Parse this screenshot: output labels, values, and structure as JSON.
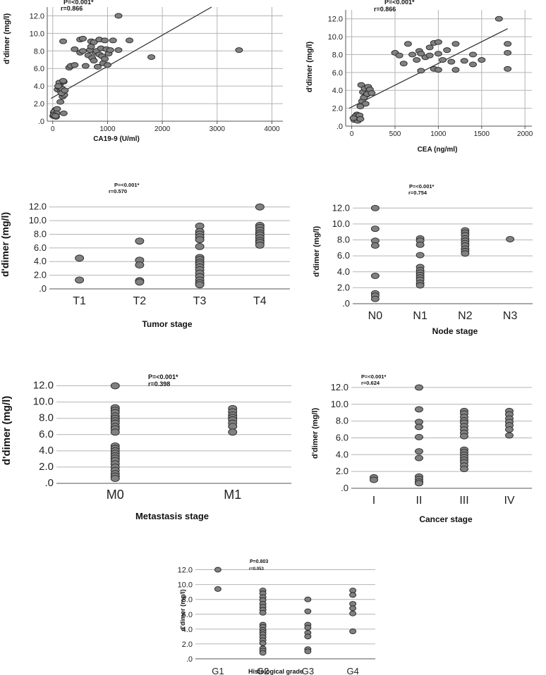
{
  "chart_data": [
    {
      "id": "ca199",
      "type": "scatter",
      "title": "",
      "xlabel": "CA19-9 (U/ml)",
      "ylabel": "d'dimer (mg/l)",
      "xlim": [
        -100,
        4200
      ],
      "ylim": [
        0,
        13
      ],
      "x_ticks": [
        0,
        1000,
        2000,
        3000,
        4000
      ],
      "x_tick_labels": [
        "0",
        "1000",
        "2000",
        "3000",
        "4000"
      ],
      "y_ticks": [
        0,
        2,
        4,
        6,
        8,
        10,
        12
      ],
      "y_tick_labels": [
        ".0",
        "2.0",
        "4.0",
        "6.0",
        "8.0",
        "10.0",
        "12.0"
      ],
      "annotations": [
        "P=<0.001*",
        "r=0.866"
      ],
      "fit_line": [
        [
          -30,
          2.6
        ],
        [
          2900,
          13.0
        ]
      ],
      "points": [
        [
          10,
          0.6
        ],
        [
          20,
          1.0
        ],
        [
          40,
          0.8
        ],
        [
          50,
          1.3
        ],
        [
          30,
          1.1
        ],
        [
          60,
          0.5
        ],
        [
          80,
          1.4
        ],
        [
          70,
          0.9
        ],
        [
          20,
          0.7
        ],
        [
          50,
          0.6
        ],
        [
          90,
          3.6
        ],
        [
          110,
          3.9
        ],
        [
          130,
          4.2
        ],
        [
          150,
          3.4
        ],
        [
          170,
          3.7
        ],
        [
          120,
          4.4
        ],
        [
          100,
          4.0
        ],
        [
          180,
          2.8
        ],
        [
          200,
          4.5
        ],
        [
          210,
          3.0
        ],
        [
          160,
          3.2
        ],
        [
          140,
          2.2
        ],
        [
          190,
          4.6
        ],
        [
          220,
          3.5
        ],
        [
          200,
          0.9
        ],
        [
          190,
          9.1
        ],
        [
          300,
          6.1
        ],
        [
          330,
          6.3
        ],
        [
          400,
          6.4
        ],
        [
          400,
          8.2
        ],
        [
          500,
          7.8
        ],
        [
          550,
          8.0
        ],
        [
          600,
          6.3
        ],
        [
          650,
          7.5
        ],
        [
          680,
          8.1
        ],
        [
          700,
          8.5
        ],
        [
          720,
          7.2
        ],
        [
          750,
          6.9
        ],
        [
          780,
          7.8
        ],
        [
          800,
          8.0
        ],
        [
          820,
          6.2
        ],
        [
          850,
          7.6
        ],
        [
          880,
          8.3
        ],
        [
          900,
          7.4
        ],
        [
          920,
          6.6
        ],
        [
          950,
          7.1
        ],
        [
          980,
          8.2
        ],
        [
          1000,
          6.4
        ],
        [
          1020,
          7.7
        ],
        [
          1050,
          8.1
        ],
        [
          1100,
          9.2
        ],
        [
          500,
          9.3
        ],
        [
          550,
          9.4
        ],
        [
          700,
          9.1
        ],
        [
          750,
          9.0
        ],
        [
          850,
          9.3
        ],
        [
          950,
          9.2
        ],
        [
          1200,
          12.0
        ],
        [
          1200,
          8.1
        ],
        [
          1400,
          9.2
        ],
        [
          1800,
          7.3
        ],
        [
          3400,
          8.1
        ]
      ]
    },
    {
      "id": "cea",
      "type": "scatter",
      "title": "",
      "xlabel": "CEA (ng/ml)",
      "ylabel": "d'dimer (mg/l)",
      "xlim": [
        -70,
        2080
      ],
      "ylim": [
        0,
        13
      ],
      "x_ticks": [
        0,
        500,
        1000,
        1500,
        2000
      ],
      "x_tick_labels": [
        "0",
        "500",
        "1000",
        "1500",
        "2000"
      ],
      "y_ticks": [
        0,
        2,
        4,
        6,
        8,
        10,
        12
      ],
      "y_tick_labels": [
        ".0",
        "2.0",
        "4.0",
        "6.0",
        "8.0",
        "10.0",
        "12.0"
      ],
      "annotations": [
        "P=<0.001*",
        "r=0.866"
      ],
      "fit_line": [
        [
          -30,
          2.0
        ],
        [
          1800,
          10.9
        ]
      ],
      "points": [
        [
          30,
          0.7
        ],
        [
          50,
          1.0
        ],
        [
          70,
          0.6
        ],
        [
          60,
          1.3
        ],
        [
          80,
          0.9
        ],
        [
          40,
          1.1
        ],
        [
          90,
          1.2
        ],
        [
          100,
          0.8
        ],
        [
          20,
          0.9
        ],
        [
          110,
          4.6
        ],
        [
          130,
          3.8
        ],
        [
          150,
          4.2
        ],
        [
          170,
          3.5
        ],
        [
          190,
          4.4
        ],
        [
          200,
          3.9
        ],
        [
          120,
          2.8
        ],
        [
          140,
          3.2
        ],
        [
          160,
          2.5
        ],
        [
          180,
          3.6
        ],
        [
          210,
          4.1
        ],
        [
          230,
          3.7
        ],
        [
          100,
          2.2
        ],
        [
          500,
          8.2
        ],
        [
          550,
          7.9
        ],
        [
          600,
          7.0
        ],
        [
          650,
          9.2
        ],
        [
          700,
          8.0
        ],
        [
          750,
          7.4
        ],
        [
          780,
          8.4
        ],
        [
          800,
          6.2
        ],
        [
          850,
          7.7
        ],
        [
          900,
          8.8
        ],
        [
          950,
          6.4
        ],
        [
          1000,
          8.1
        ],
        [
          1000,
          6.3
        ],
        [
          1050,
          7.4
        ],
        [
          1100,
          8.5
        ],
        [
          1150,
          7.2
        ],
        [
          1200,
          9.2
        ],
        [
          1200,
          6.3
        ],
        [
          1300,
          7.3
        ],
        [
          1400,
          8.0
        ],
        [
          1400,
          6.9
        ],
        [
          1500,
          7.4
        ],
        [
          1700,
          12.0
        ],
        [
          1800,
          9.2
        ],
        [
          1800,
          8.2
        ],
        [
          1800,
          6.4
        ],
        [
          800,
          8.1
        ],
        [
          900,
          7.9
        ],
        [
          950,
          9.3
        ],
        [
          1000,
          9.4
        ]
      ]
    },
    {
      "id": "tumor",
      "type": "strip",
      "xlabel": "Tumor stage",
      "ylabel": "d'dimer (mg/l)",
      "categories": [
        "T1",
        "T2",
        "T3",
        "T4"
      ],
      "ylim": [
        0,
        13
      ],
      "y_ticks": [
        0,
        2,
        4,
        6,
        8,
        10,
        12
      ],
      "y_tick_labels": [
        ".0",
        "2.0",
        "4.0",
        "6.0",
        "8.0",
        "10.0",
        "12.0"
      ],
      "annotations": [
        "P=<0.001*",
        "r=0.570"
      ],
      "values": [
        [
          4.5,
          1.3
        ],
        [
          7.0,
          4.2,
          3.5,
          1.2,
          1.0
        ],
        [
          9.2,
          8.4,
          8.0,
          7.6,
          7.2,
          6.2,
          4.6,
          4.3,
          3.9,
          3.6,
          3.2,
          2.8,
          2.3,
          1.8,
          1.3,
          0.9,
          0.6
        ],
        [
          12.0,
          9.3,
          9.0,
          8.6,
          8.2,
          7.9,
          7.5,
          7.1,
          6.8,
          6.4
        ]
      ]
    },
    {
      "id": "node",
      "type": "strip",
      "xlabel": "Node stage",
      "ylabel": "d'dimer (mg/l)",
      "categories": [
        "N0",
        "N1",
        "N2",
        "N3"
      ],
      "ylim": [
        0,
        13
      ],
      "y_ticks": [
        0,
        2,
        4,
        6,
        8,
        10,
        12
      ],
      "y_tick_labels": [
        ".0",
        "2.0",
        "4.0",
        "6.0",
        "8.0",
        "10.0",
        "12.0"
      ],
      "annotations": [
        "P=<0.001*",
        "r=0.754"
      ],
      "values": [
        [
          12.0,
          9.4,
          7.9,
          7.3,
          3.5,
          1.3,
          1.0,
          0.6
        ],
        [
          8.2,
          7.9,
          7.4,
          6.1,
          4.6,
          4.2,
          3.9,
          3.6,
          3.3,
          3.0,
          2.6,
          2.3
        ],
        [
          9.2,
          8.9,
          8.6,
          8.2,
          7.9,
          7.6,
          7.3,
          6.9,
          6.6,
          6.3
        ],
        [
          8.1
        ]
      ]
    },
    {
      "id": "metastasis",
      "type": "strip",
      "xlabel": "Metastasis stage",
      "ylabel": "d'dimer (mg/l)",
      "categories": [
        "M0",
        "M1"
      ],
      "ylim": [
        0,
        13
      ],
      "y_ticks": [
        0,
        2,
        4,
        6,
        8,
        10,
        12
      ],
      "y_tick_labels": [
        ".0",
        "2.0",
        "4.0",
        "6.0",
        "8.0",
        "10.0",
        "12.0"
      ],
      "annotations": [
        "P=<0.001*",
        "r=0.398"
      ],
      "values": [
        [
          12.0,
          9.3,
          9.0,
          8.7,
          8.3,
          8.0,
          7.7,
          7.4,
          7.0,
          6.7,
          6.3,
          4.6,
          4.3,
          4.0,
          3.7,
          3.4,
          3.1,
          2.8,
          2.4,
          2.0,
          1.6,
          1.2,
          0.9,
          0.6
        ],
        [
          9.2,
          8.8,
          8.4,
          8.1,
          7.8,
          7.4,
          7.0,
          6.3
        ]
      ]
    },
    {
      "id": "cancer",
      "type": "strip",
      "xlabel": "Cancer stage",
      "ylabel": "d'dimer (mg/l)",
      "categories": [
        "I",
        "II",
        "III",
        "IV"
      ],
      "ylim": [
        0,
        13
      ],
      "y_ticks": [
        0,
        2,
        4,
        6,
        8,
        10,
        12
      ],
      "y_tick_labels": [
        ".0",
        "2.0",
        "4.0",
        "6.0",
        "8.0",
        "10.0",
        "12.0"
      ],
      "annotations": [
        "P=<0.001*",
        "r=0.624"
      ],
      "values": [
        [
          1.3,
          1.0
        ],
        [
          12.0,
          9.4,
          7.9,
          7.3,
          6.1,
          4.4,
          3.6,
          1.4,
          1.1,
          0.8,
          0.6
        ],
        [
          9.2,
          8.9,
          8.5,
          8.1,
          7.8,
          7.4,
          7.0,
          6.6,
          6.2,
          4.6,
          4.3,
          4.0,
          3.7,
          3.4,
          3.1,
          2.7,
          2.3
        ],
        [
          9.2,
          8.8,
          8.3,
          7.9,
          7.5,
          7.0,
          6.3
        ]
      ]
    },
    {
      "id": "grade",
      "type": "strip",
      "xlabel": "Histological grade",
      "ylabel": "d'dimer (mg/l)",
      "categories": [
        "G1",
        "G2",
        "G3",
        "G4"
      ],
      "ylim": [
        0,
        13
      ],
      "y_ticks": [
        0,
        2,
        4,
        6,
        8,
        10,
        12
      ],
      "y_tick_labels": [
        ".0",
        "2.0",
        "4.0",
        "6.0",
        "8.0",
        "10.0",
        "12.0"
      ],
      "annotations": [
        "P=0.803",
        "r=0.053"
      ],
      "values": [
        [
          12.0,
          9.4
        ],
        [
          9.2,
          8.8,
          8.3,
          7.9,
          7.4,
          7.0,
          6.6,
          6.2,
          4.6,
          4.3,
          3.9,
          3.6,
          3.3,
          2.9,
          2.5,
          2.1,
          1.4,
          1.1,
          0.8
        ],
        [
          8.0,
          6.4,
          4.6,
          4.2,
          3.5,
          3.0,
          1.3,
          1.0
        ],
        [
          9.2,
          8.6,
          7.4,
          6.8,
          6.1,
          3.7
        ]
      ]
    }
  ],
  "colors": {
    "marker_fill": "#808080",
    "marker_stroke": "#262626",
    "grid": "#b4b4b4",
    "axis": "#555555",
    "fit_line": "#2b2b2b"
  }
}
